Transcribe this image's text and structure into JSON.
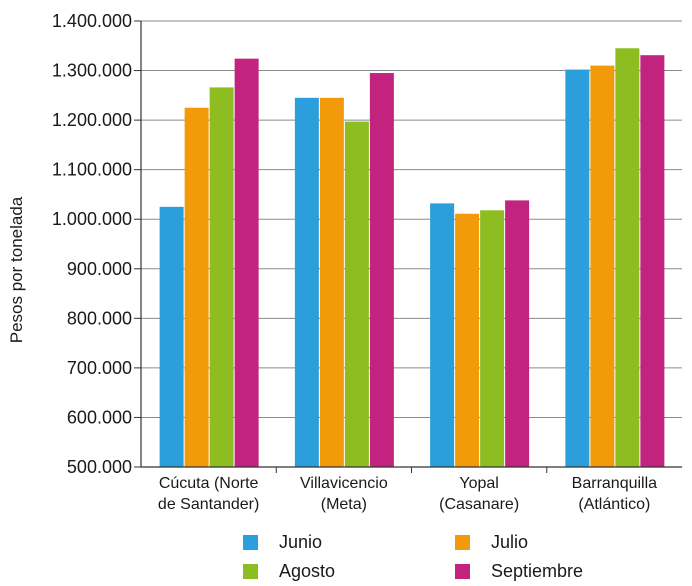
{
  "chart_data": {
    "type": "bar",
    "ylabel": "Pesos por tonelada",
    "ylim": [
      500000,
      1400000
    ],
    "yticks": [
      500000,
      600000,
      700000,
      800000,
      900000,
      1000000,
      1100000,
      1200000,
      1300000,
      1400000
    ],
    "ytick_labels": [
      "500.000",
      "600.000",
      "700.000",
      "800.000",
      "900.000",
      "1.000.000",
      "1.100.000",
      "1.200.000",
      "1.300.000",
      "1.400.000"
    ],
    "categories": [
      [
        "Cúcuta (Norte",
        "de Santander)"
      ],
      [
        "Villavicencio",
        "(Meta)"
      ],
      [
        "Yopal",
        "(Casanare)"
      ],
      [
        "Barranquilla",
        "(Atlántico)"
      ]
    ],
    "series": [
      {
        "name": "Junio",
        "color": "#2a9fdb",
        "values": [
          1025000,
          1245000,
          1032000,
          1302000
        ]
      },
      {
        "name": "Julio",
        "color": "#f39a0b",
        "values": [
          1225000,
          1245000,
          1011000,
          1310000
        ]
      },
      {
        "name": "Agosto",
        "color": "#8dbd21",
        "values": [
          1266000,
          1197000,
          1018000,
          1345000
        ]
      },
      {
        "name": "Septiembre",
        "color": "#c2237f",
        "values": [
          1324000,
          1295000,
          1038000,
          1331000
        ]
      }
    ],
    "grid": "horizontal",
    "legend_position": "bottom"
  }
}
